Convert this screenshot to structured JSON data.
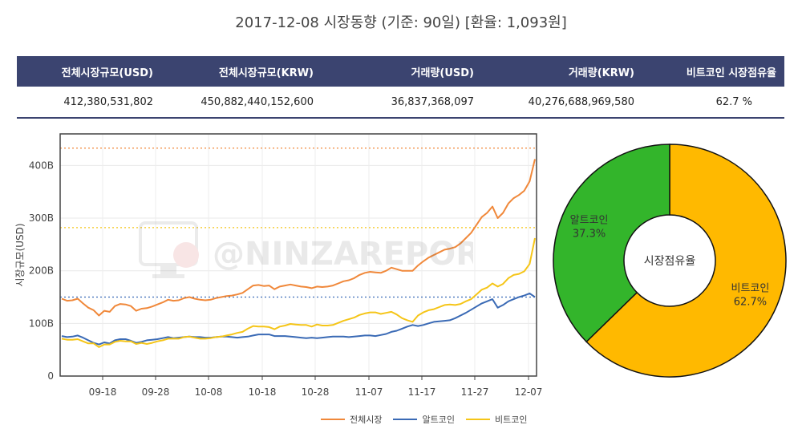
{
  "title": "2017-12-08 시장동향 (기준: 90일)   [환율: 1,093원]",
  "table": {
    "headers": [
      "전체시장규모(USD)",
      "전체시장규모(KRW)",
      "거래량(USD)",
      "거래량(KRW)",
      "비트코인 시장점유율"
    ],
    "values": [
      "412,380,531,802",
      "450,882,440,152,600",
      "36,837,368,097",
      "40,276,688,969,580",
      "62.7 %"
    ]
  },
  "watermark": "@NINZAREPORT",
  "colors": {
    "total": "#f0883a",
    "alt": "#3a6ab5",
    "btc": "#f5c518",
    "pie_btc": "#ffb900",
    "pie_alt": "#33b52b",
    "header": "#3b4470"
  },
  "legend": [
    "전체시장",
    "알트코인",
    "비트코인"
  ],
  "chart_data": [
    {
      "type": "line",
      "ylabel": "시장규모(USD)",
      "yticks": [
        "0",
        "100B",
        "200B",
        "300B",
        "400B"
      ],
      "ylim": [
        0,
        460
      ],
      "xticks": [
        "09-18",
        "09-28",
        "10-08",
        "10-18",
        "10-28",
        "11-07",
        "11-17",
        "11-27",
        "12-07"
      ],
      "grid": true,
      "legend_position": "bottom",
      "reference_lines": [
        433,
        282,
        150
      ],
      "series": [
        {
          "name": "전체시장",
          "values": [
            147,
            143,
            144,
            147,
            138,
            130,
            125,
            115,
            124,
            122,
            133,
            137,
            136,
            133,
            124,
            128,
            129,
            132,
            136,
            140,
            145,
            143,
            144,
            148,
            150,
            147,
            145,
            144,
            145,
            148,
            150,
            152,
            153,
            155,
            158,
            165,
            172,
            173,
            171,
            172,
            165,
            170,
            172,
            174,
            172,
            170,
            169,
            167,
            170,
            169,
            170,
            172,
            176,
            180,
            182,
            186,
            192,
            196,
            198,
            197,
            196,
            200,
            206,
            203,
            200,
            200,
            200,
            210,
            218,
            225,
            230,
            235,
            240,
            242,
            245,
            252,
            262,
            272,
            287,
            302,
            310,
            322,
            300,
            310,
            328,
            338,
            344,
            352,
            370,
            412
          ]
        },
        {
          "name": "알트코인",
          "values": [
            76,
            74,
            75,
            77,
            73,
            68,
            63,
            60,
            64,
            62,
            68,
            70,
            70,
            67,
            63,
            65,
            68,
            69,
            70,
            72,
            74,
            72,
            73,
            74,
            75,
            74,
            74,
            73,
            73,
            74,
            75,
            75,
            74,
            73,
            74,
            75,
            77,
            79,
            79,
            79,
            76,
            76,
            76,
            75,
            74,
            73,
            72,
            73,
            72,
            73,
            74,
            75,
            75,
            75,
            74,
            75,
            76,
            77,
            77,
            76,
            78,
            80,
            84,
            86,
            90,
            94,
            97,
            95,
            97,
            100,
            103,
            104,
            105,
            106,
            110,
            115,
            120,
            126,
            132,
            138,
            142,
            146,
            130,
            135,
            142,
            146,
            150,
            153,
            157,
            150
          ]
        },
        {
          "name": "비트코인",
          "values": [
            71,
            69,
            69,
            70,
            66,
            62,
            62,
            55,
            60,
            60,
            65,
            67,
            66,
            66,
            61,
            63,
            61,
            63,
            66,
            68,
            71,
            71,
            71,
            74,
            75,
            73,
            71,
            71,
            72,
            74,
            75,
            77,
            79,
            82,
            84,
            90,
            95,
            94,
            94,
            93,
            89,
            94,
            96,
            99,
            98,
            97,
            97,
            94,
            98,
            96,
            96,
            97,
            101,
            105,
            108,
            111,
            116,
            119,
            121,
            121,
            118,
            120,
            122,
            117,
            110,
            106,
            103,
            115,
            121,
            125,
            127,
            131,
            135,
            136,
            135,
            137,
            142,
            146,
            155,
            164,
            168,
            176,
            170,
            175,
            186,
            192,
            194,
            199,
            213,
            262
          ]
        }
      ]
    },
    {
      "type": "pie",
      "title": "시장점유율",
      "slices": [
        {
          "label": "비트코인",
          "value": 62.7,
          "text": "62.7%"
        },
        {
          "label": "알트코인",
          "value": 37.3,
          "text": "37.3%"
        }
      ]
    }
  ]
}
